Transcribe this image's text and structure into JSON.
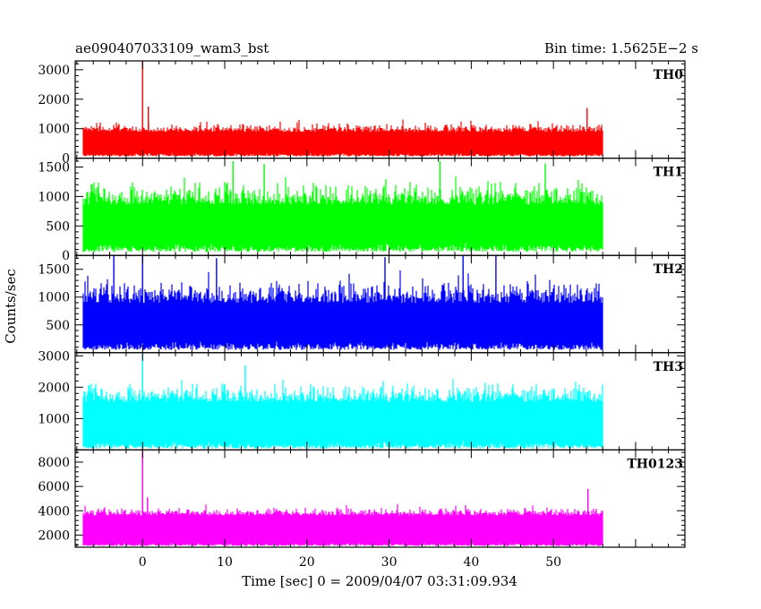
{
  "chart_data": {
    "type": "line",
    "title": "ae090407033109_wam3_bst",
    "subtitle": "Bin time: 1.5625E−2 s",
    "xlabel": "Time [sec] 0 = 2009/04/07 03:31:09.934",
    "ylabel": "Counts/sec",
    "xlim": [
      -8.2,
      66
    ],
    "x_ticks": [
      0,
      10,
      20,
      30,
      40,
      50
    ],
    "x_data_range": [
      -7.2,
      56
    ],
    "bin_time": 0.015625,
    "panels": [
      {
        "name": "TH0",
        "color": "#ff0000",
        "ylim": [
          0,
          3300
        ],
        "y_ticks": [
          0,
          1000,
          2000,
          3000
        ],
        "baseline": 750,
        "spread": 400,
        "low_floor": 60,
        "spikes": [
          {
            "x": 0.0,
            "y": 3300
          },
          {
            "x": 0.7,
            "y": 1750
          },
          {
            "x": 54.1,
            "y": 1700
          }
        ]
      },
      {
        "name": "TH1",
        "color": "#00ff00",
        "ylim": [
          0,
          1650
        ],
        "y_ticks": [
          0,
          500,
          1000,
          1500
        ],
        "baseline": 680,
        "spread": 520,
        "low_floor": 60,
        "spikes": [
          {
            "x": 11.0,
            "y": 1600
          },
          {
            "x": 14.8,
            "y": 1550
          },
          {
            "x": 36.2,
            "y": 1600
          },
          {
            "x": 49.0,
            "y": 1560
          }
        ]
      },
      {
        "name": "TH2",
        "color": "#0000ff",
        "ylim": [
          0,
          1750
        ],
        "y_ticks": [
          500,
          1000,
          1500
        ],
        "baseline": 700,
        "spread": 560,
        "low_floor": 50,
        "spikes": [
          {
            "x": -3.5,
            "y": 1750
          },
          {
            "x": 0.0,
            "y": 1750
          },
          {
            "x": 9.0,
            "y": 1700
          },
          {
            "x": 29.5,
            "y": 1720
          },
          {
            "x": 39.0,
            "y": 1750
          },
          {
            "x": 43.0,
            "y": 1740
          }
        ]
      },
      {
        "name": "TH3",
        "color": "#00ffff",
        "ylim": [
          0,
          3100
        ],
        "y_ticks": [
          1000,
          2000,
          3000
        ],
        "baseline": 1250,
        "spread": 800,
        "low_floor": 40,
        "spikes": [
          {
            "x": 0.0,
            "y": 3100
          },
          {
            "x": 12.5,
            "y": 2700
          }
        ]
      },
      {
        "name": "TH0123",
        "color": "#ff00ff",
        "ylim": [
          1000,
          9000
        ],
        "y_ticks": [
          2000,
          4000,
          6000,
          8000
        ],
        "baseline": 3300,
        "spread": 900,
        "low_floor": 1100,
        "spikes": [
          {
            "x": 0.0,
            "y": 9000
          },
          {
            "x": 0.6,
            "y": 5100
          },
          {
            "x": 54.2,
            "y": 5800
          }
        ]
      }
    ]
  }
}
